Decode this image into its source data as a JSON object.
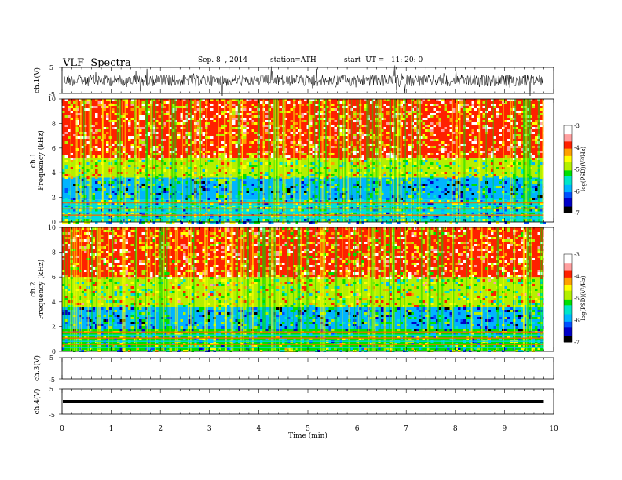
{
  "header": {
    "title": "VLF  Spectra",
    "date": "Sep. 8  , 2014",
    "station": "station=ATH",
    "start": "start  UT =   11: 20: 0"
  },
  "colors": {
    "spectrogram_palette": [
      "#000000",
      "#0000c8",
      "#0050ff",
      "#00b4ff",
      "#00e6c8",
      "#00e000",
      "#b4f000",
      "#ffff00",
      "#ffa000",
      "#ff2000",
      "#ffa0a0",
      "#ffffff"
    ]
  },
  "chart_data": [
    {
      "type": "line",
      "title": "",
      "ylabel": "ch.1(V)",
      "ylim": [
        -5,
        5
      ],
      "yticks": [
        "5",
        "-5"
      ],
      "xlim": [
        0,
        10
      ],
      "description_series": "broadband noise signal, amplitude about ±2 V around 0"
    },
    {
      "type": "heatmap",
      "ylabel": "ch.1\nFrequency (kHz)",
      "ylim": [
        0,
        10
      ],
      "yticks": [
        "0",
        "2",
        "4",
        "6",
        "8",
        "10"
      ],
      "xlim": [
        0,
        10
      ],
      "data_end_min": 9.8,
      "colorbar": {
        "label": "log(PSD)(V²/Hz)",
        "range": [
          -7,
          -3
        ],
        "ticks": [
          "-3",
          "-4",
          "-5",
          "-6",
          "-7"
        ]
      },
      "bands_khz": [
        {
          "from": 0,
          "to": 1.8,
          "level": -5.4
        },
        {
          "from": 1.8,
          "to": 3.6,
          "level": -5.8
        },
        {
          "from": 3.6,
          "to": 5.2,
          "level": -4.8
        },
        {
          "from": 5.2,
          "to": 10,
          "level": -3.9
        }
      ]
    },
    {
      "type": "heatmap",
      "ylabel": "ch.2\nFrequency (kHz)",
      "ylim": [
        0,
        10
      ],
      "yticks": [
        "0",
        "2",
        "4",
        "6",
        "8",
        "10"
      ],
      "xlim": [
        0,
        10
      ],
      "data_end_min": 9.8,
      "colorbar": {
        "label": "log(PSD)(V²/Hz)",
        "range": [
          -7,
          -3
        ],
        "ticks": [
          "-3",
          "-4",
          "-5",
          "-6",
          "-7"
        ]
      },
      "bands_khz": [
        {
          "from": 0,
          "to": 1.8,
          "level": -5.3
        },
        {
          "from": 1.8,
          "to": 3.6,
          "level": -5.8
        },
        {
          "from": 3.6,
          "to": 6.0,
          "level": -4.7
        },
        {
          "from": 6.0,
          "to": 10,
          "level": -4.0
        }
      ]
    },
    {
      "type": "line",
      "ylabel": "ch.3(V)",
      "ylim": [
        -5,
        5
      ],
      "yticks": [
        "5",
        "-5"
      ],
      "xlim": [
        0,
        10
      ],
      "description_series": "flat line near 0 V"
    },
    {
      "type": "line",
      "ylabel": "ch.4(V)",
      "ylim": [
        -5,
        5
      ],
      "yticks": [
        "5",
        "-5"
      ],
      "xlim": [
        0,
        10
      ],
      "description_series": "thick flat line near 0 V"
    }
  ],
  "x_axis": {
    "label": "Time  (min)",
    "ticks": [
      "0",
      "1",
      "2",
      "3",
      "4",
      "5",
      "6",
      "7",
      "8",
      "9",
      "10"
    ]
  }
}
